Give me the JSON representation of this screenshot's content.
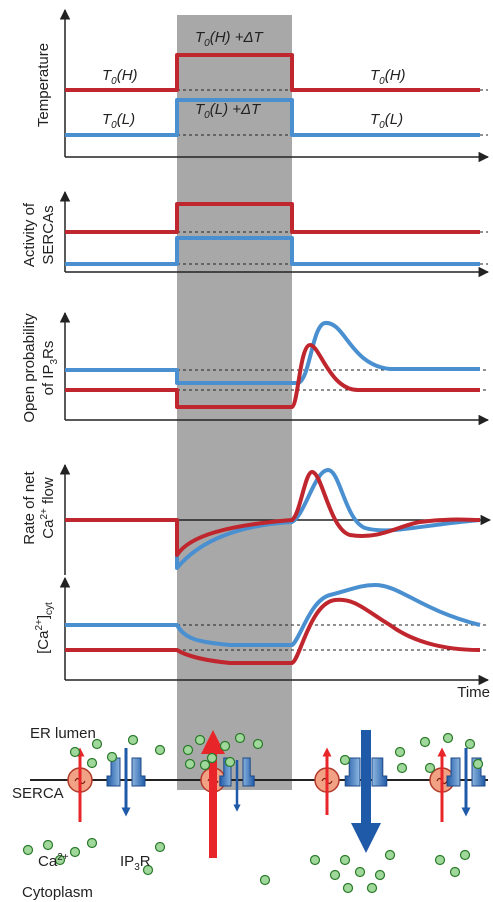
{
  "panels": [
    {
      "y_label": [
        [
          {
            "text": "Temperature"
          }
        ]
      ],
      "annotations": [
        [
          {
            "text": "T"
          },
          {
            "text": "0",
            "style": "sub"
          },
          {
            "text": "(H)"
          }
        ],
        [
          {
            "text": "T"
          },
          {
            "text": "0",
            "style": "sub"
          },
          {
            "text": "(L)"
          }
        ],
        [
          {
            "text": "T"
          },
          {
            "text": "0",
            "style": "sub"
          },
          {
            "text": "(H) +ΔT"
          }
        ],
        [
          {
            "text": "T"
          },
          {
            "text": "0",
            "style": "sub"
          },
          {
            "text": "(L) +ΔT"
          }
        ],
        [
          {
            "text": "T"
          },
          {
            "text": "0",
            "style": "sub"
          },
          {
            "text": "(H)"
          }
        ],
        [
          {
            "text": "T"
          },
          {
            "text": "0",
            "style": "sub"
          },
          {
            "text": "(L)"
          }
        ]
      ]
    },
    {
      "y_label": [
        [
          {
            "text": "Activity of"
          }
        ],
        [
          {
            "text": "SERCAs"
          }
        ]
      ]
    },
    {
      "y_label": [
        [
          {
            "text": "Open probability"
          }
        ],
        [
          {
            "text": "of IP"
          },
          {
            "text": "3",
            "style": "sub"
          },
          {
            "text": "Rs"
          }
        ]
      ]
    },
    {
      "y_label": [
        [
          {
            "text": "Rate of net"
          }
        ],
        [
          {
            "text": "Ca"
          },
          {
            "text": "2+",
            "style": "sup"
          },
          {
            "text": " flow"
          }
        ]
      ]
    },
    {
      "y_label": [
        [
          {
            "text": "[Ca"
          },
          {
            "text": "2+",
            "style": "sup"
          },
          {
            "text": "]"
          },
          {
            "text": "cyt",
            "style": "sub"
          }
        ]
      ]
    }
  ],
  "x_label": "Time",
  "cell": {
    "er_lumen": "ER lumen",
    "cytoplasm": "Cytoplasm",
    "serca": "SERCA",
    "calcium": [
      {
        "text": "Ca"
      },
      {
        "text": "2+",
        "style": "sup"
      }
    ],
    "ip3r": [
      {
        "text": "IP"
      },
      {
        "text": "3",
        "style": "sub"
      },
      {
        "text": "R"
      }
    ]
  }
}
